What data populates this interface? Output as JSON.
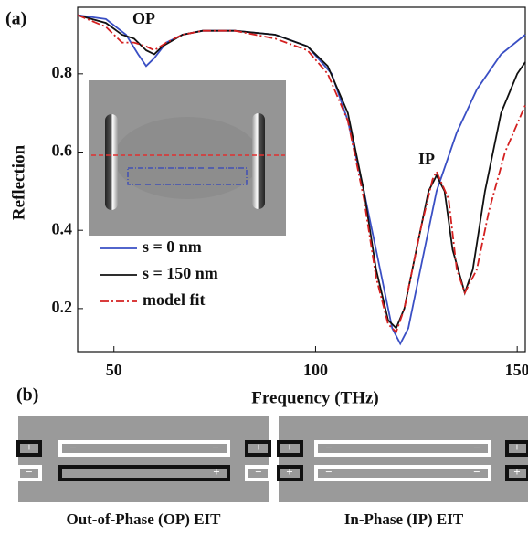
{
  "chart_data": {
    "type": "line",
    "panel_label": "(a)",
    "x_label": "Frequency (THz)",
    "y_label": "Reflection",
    "annotations": [
      "OP",
      "IP"
    ],
    "xlim": [
      41,
      152
    ],
    "ylim": [
      0.09,
      0.97
    ],
    "xticks": [
      50,
      100,
      150
    ],
    "yticks": [
      0.2,
      0.4,
      0.6,
      0.8
    ],
    "legend": "lower left",
    "series": [
      {
        "name": "s = 0 nm",
        "color": "#3a4fc4",
        "dash": "solid",
        "x": [
          41,
          48,
          53,
          56,
          58,
          60,
          63,
          67,
          72,
          80,
          90,
          98,
          104,
          108,
          112,
          116,
          119,
          121,
          123,
          126,
          130,
          135,
          140,
          146,
          152
        ],
        "values": [
          0.95,
          0.94,
          0.9,
          0.85,
          0.82,
          0.84,
          0.88,
          0.9,
          0.91,
          0.91,
          0.9,
          0.87,
          0.8,
          0.68,
          0.5,
          0.3,
          0.15,
          0.11,
          0.15,
          0.3,
          0.5,
          0.65,
          0.76,
          0.85,
          0.9
        ]
      },
      {
        "name": "s = 150 nm",
        "color": "#111111",
        "dash": "solid",
        "x": [
          41,
          48,
          52,
          55,
          58,
          60,
          62,
          67,
          72,
          80,
          90,
          98,
          103,
          108,
          112,
          115,
          118,
          120,
          122,
          125,
          128,
          130,
          132,
          134,
          137,
          139,
          142,
          146,
          150,
          152
        ],
        "values": [
          0.95,
          0.93,
          0.9,
          0.89,
          0.86,
          0.85,
          0.87,
          0.9,
          0.91,
          0.91,
          0.9,
          0.87,
          0.82,
          0.7,
          0.5,
          0.3,
          0.17,
          0.15,
          0.2,
          0.35,
          0.5,
          0.54,
          0.5,
          0.35,
          0.24,
          0.3,
          0.5,
          0.7,
          0.8,
          0.83
        ]
      },
      {
        "name": "model fit",
        "color": "#d42020",
        "dash": "dashdot",
        "x": [
          41,
          48,
          52,
          55,
          58,
          60,
          63,
          67,
          72,
          80,
          90,
          98,
          103,
          108,
          112,
          115,
          118,
          120,
          122,
          126,
          129,
          130,
          133,
          135,
          137,
          140,
          143,
          147,
          152
        ],
        "values": [
          0.95,
          0.92,
          0.88,
          0.88,
          0.87,
          0.86,
          0.88,
          0.9,
          0.91,
          0.91,
          0.89,
          0.86,
          0.8,
          0.68,
          0.48,
          0.28,
          0.16,
          0.14,
          0.2,
          0.4,
          0.53,
          0.55,
          0.48,
          0.3,
          0.24,
          0.3,
          0.45,
          0.6,
          0.72
        ]
      }
    ]
  },
  "panel_b": {
    "label": "(b)",
    "plus": "+",
    "minus": "−",
    "captions": [
      "Out-of-Phase (OP) EIT",
      "In-Phase (IP) EIT"
    ]
  }
}
